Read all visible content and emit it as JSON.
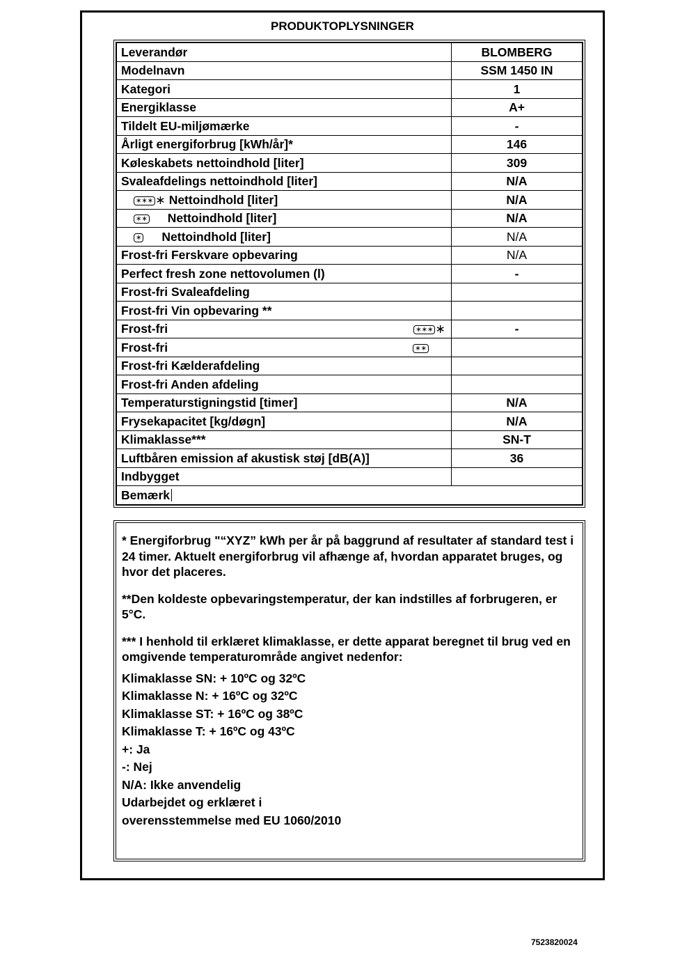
{
  "title": "PRODUKTOPLYSNINGER",
  "rows": [
    {
      "label": "Leverandør",
      "value": "BLOMBERG"
    },
    {
      "label": "Modelnavn",
      "value": "SSM 1450 IN"
    },
    {
      "label": "Kategori",
      "value": "1"
    },
    {
      "label": "Energiklasse",
      "value": "A+"
    },
    {
      "label": "Tildelt EU-miljømærke",
      "value": "-"
    },
    {
      "label": "Årligt energiforbrug [kWh/år]*",
      "value": "146"
    },
    {
      "label": "Køleskabets nettoindhold [liter]",
      "value": "309"
    },
    {
      "label": "Svaleafdelings nettoindhold [liter]",
      "value": "N/A"
    },
    {
      "label": "Nettoindhold [liter]",
      "value": "N/A",
      "icon": "∗∗∗",
      "icon_extra": "∗"
    },
    {
      "label": "Nettoindhold [liter]",
      "value": "N/A",
      "icon": "∗∗"
    },
    {
      "label": "Nettoindhold [liter]",
      "value": "N/A",
      "icon": "∗"
    },
    {
      "label": "Frost-fri Ferskvare opbevaring",
      "value": "N/A"
    },
    {
      "label": "Perfect fresh zone nettovolumen (l)",
      "value": "-"
    },
    {
      "label": "Frost-fri Svaleafdeling",
      "value": ""
    },
    {
      "label": "Frost-fri Vin opbevaring **",
      "value": ""
    },
    {
      "label": "Frost-fri",
      "value": "-",
      "icon": "∗∗∗",
      "icon_extra": "∗"
    },
    {
      "label": "Frost-fri",
      "value": "",
      "icon": "∗∗"
    },
    {
      "label": "Frost-fri Kælderafdeling",
      "value": ""
    },
    {
      "label": "Frost-fri Anden afdeling",
      "value": ""
    },
    {
      "label": "Temperaturstigningstid [timer]",
      "value": "N/A"
    },
    {
      "label": "Frysekapacitet [kg/døgn]",
      "value": "N/A"
    },
    {
      "label": "Klimaklasse***",
      "value": "SN-T"
    },
    {
      "label": "Luftbåren emission af akustisk støj [dB(A)]",
      "value": "36"
    },
    {
      "label": "Indbygget",
      "value": ""
    },
    {
      "label": "Bemærk",
      "value": ""
    }
  ],
  "notes": {
    "p1": "* Energiforbrug \"“XYZ” kWh per år på baggrund af resultater af standard test i 24 timer. Aktuelt energiforbrug vil afhænge af, hvordan apparatet bruges, og hvor det placeres.",
    "p2": "**Den koldeste opbevaringstemperatur, der kan indstilles af forbrugeren, er 5°C.",
    "p3": " *** I henhold til erklæret klimaklasse, er dette apparat beregnet til brug ved en omgivende temperaturområde angivet nedenfor:",
    "lines": [
      "Klimaklasse SN: + 10ºC og 32ºC",
      "Klimaklasse N: + 16ºC og 32ºC",
      "Klimaklasse ST: + 16ºC og 38ºC",
      "Klimaklasse T: + 16ºC og 43ºC",
      "+: Ja",
      "-: Nej",
      "N/A: Ikke anvendelig",
      "Udarbejdet og erklæret i",
      "overensstemmelse  med EU 1060/2010"
    ]
  },
  "doc_code": "7523820024"
}
